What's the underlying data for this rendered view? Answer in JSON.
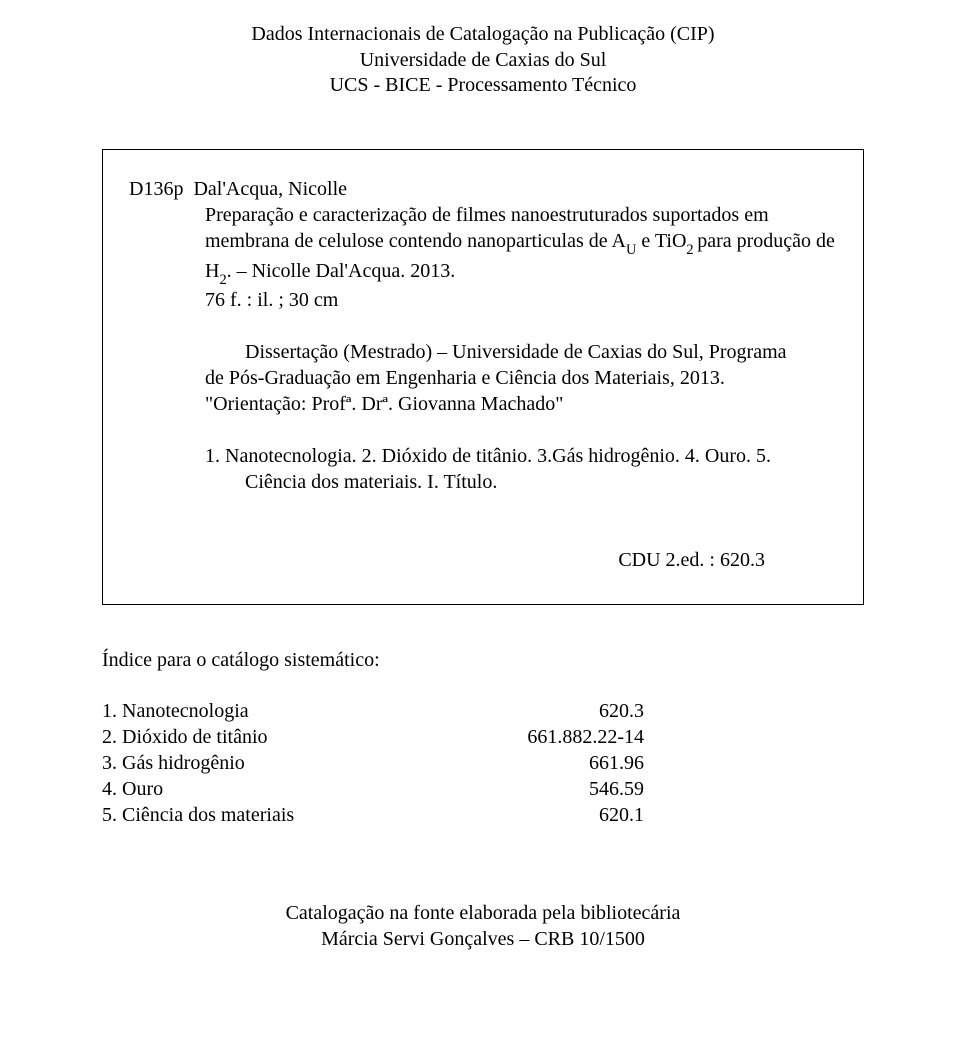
{
  "header": {
    "line1": "Dados Internacionais de Catalogação na Publicação (CIP)",
    "line2": "Universidade de Caxias do Sul",
    "line3": "UCS - BICE - Processamento Técnico"
  },
  "card": {
    "entry_code": "D136p",
    "entry_author": "Dal'Acqua, Nicolle",
    "entry_pre_sub": "Preparação e caracterização de filmes nanoestruturados suportados em membrana de celulose contendo nanoparticulas de A",
    "entry_sub1": "U",
    "entry_mid": " e TiO",
    "entry_sub2": "2 ",
    "entry_mid2": "para produção de H",
    "entry_sub3": "2",
    "entry_tail": ". – Nicolle Dal'Acqua. 2013.",
    "entry_pages": "76 f. : il. ; 30 cm",
    "diss_line1": "Dissertação (Mestrado) – Universidade de Caxias do Sul, Programa",
    "diss_line2": "de Pós-Graduação em Engenharia e Ciência dos Materiais, 2013.",
    "diss_line3": "\"Orientação: Profª. Drª. Giovanna Machado\"",
    "subjects": "1. Nanotecnologia. 2. Dióxido de titânio. 3.Gás hidrogênio. 4. Ouro. 5. Ciência dos materiais. I. Título.",
    "cdu": "CDU 2.ed. : 620.3"
  },
  "index": {
    "title": "Índice para o catálogo sistemático:",
    "rows": [
      {
        "label": "1. Nanotecnologia",
        "code": "620.3"
      },
      {
        "label": "2. Dióxido de titânio",
        "code": "661.882.22-14"
      },
      {
        "label": "3. Gás hidrogênio",
        "code": "661.96"
      },
      {
        "label": "4. Ouro",
        "code": "546.59"
      },
      {
        "label": "5. Ciência dos materiais",
        "code": "620.1"
      }
    ]
  },
  "footer": {
    "line1": "Catalogação na fonte elaborada pela bibliotecária",
    "line2": "Márcia Servi Gonçalves – CRB 10/1500"
  }
}
